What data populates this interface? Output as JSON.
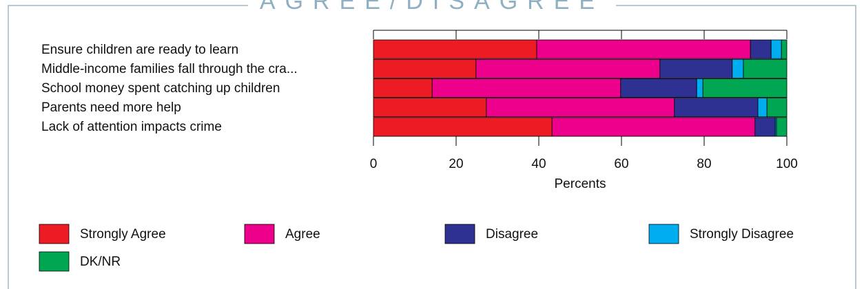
{
  "chart_data": {
    "type": "stacked-bar-horizontal",
    "title": "AGREE/DISAGREE",
    "xlabel": "Percents",
    "categories": [
      "Ensure children are ready to learn",
      "Middle-income families fall through the cra...",
      "School money spent catching up children",
      "Parents need more help",
      "Lack of attention impacts crime"
    ],
    "series": [
      {
        "name": "Strongly Agree",
        "color": "#ed1c24",
        "values": [
          39.5,
          24.8,
          14.2,
          27.3,
          43.2
        ]
      },
      {
        "name": "Agree",
        "color": "#ec008c",
        "values": [
          51.7,
          44.5,
          45.6,
          45.5,
          49.1
        ]
      },
      {
        "name": "Disagree",
        "color": "#2e3192",
        "values": [
          5.0,
          17.5,
          18.4,
          20.2,
          4.9
        ]
      },
      {
        "name": "Strongly Disagree",
        "color": "#00aeef",
        "values": [
          2.5,
          2.7,
          1.5,
          2.2,
          0.3
        ]
      },
      {
        "name": "DK/NR",
        "color": "#00a651",
        "values": [
          1.3,
          10.5,
          20.3,
          4.8,
          2.5
        ]
      }
    ],
    "xlim": [
      0,
      100
    ],
    "xticks": [
      0,
      20,
      40,
      60,
      80,
      100
    ]
  }
}
